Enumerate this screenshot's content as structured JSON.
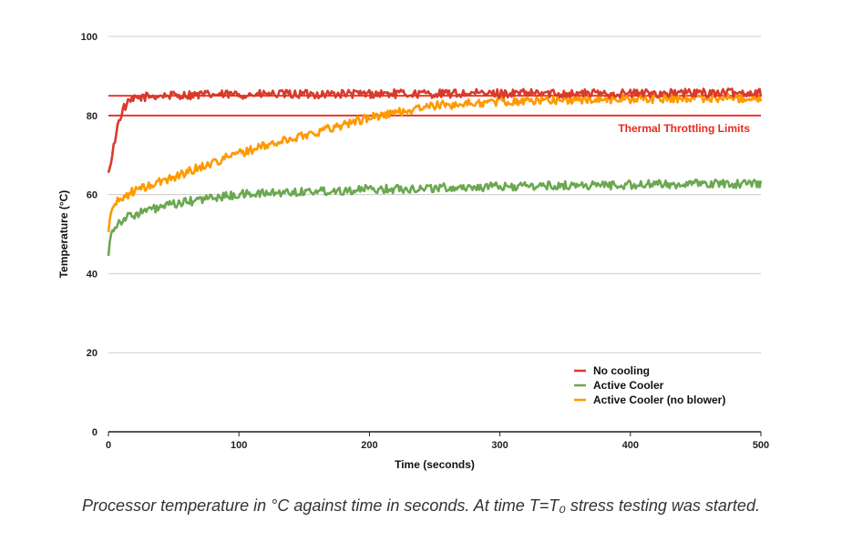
{
  "chart_data": {
    "type": "line",
    "title": "",
    "xlabel": "Time (seconds)",
    "ylabel": "Temperature (°C)",
    "xlim": [
      0,
      500
    ],
    "ylim": [
      0,
      100
    ],
    "x_ticks": [
      "0",
      "100",
      "200",
      "300",
      "400",
      "500"
    ],
    "y_ticks": [
      "0",
      "20",
      "40",
      "60",
      "80",
      "100"
    ],
    "grid": true,
    "legend_position": "bottom-right",
    "series": [
      {
        "name": "No cooling",
        "color": "#d93a2b",
        "x": [
          0,
          2,
          4,
          6,
          8,
          10,
          12,
          15,
          18,
          22,
          26,
          30,
          40,
          60,
          100,
          150,
          200,
          250,
          300,
          350,
          400,
          450,
          500
        ],
        "y": [
          65.5,
          68,
          72,
          76,
          78.5,
          80.5,
          82,
          83,
          83.8,
          84.3,
          84.6,
          84.8,
          85,
          85.2,
          85.3,
          85.4,
          85.5,
          85.5,
          85.6,
          85.6,
          85.6,
          85.7,
          85.8
        ]
      },
      {
        "name": "Active Cooler",
        "color": "#6aa84f",
        "x": [
          0,
          1,
          2,
          3,
          5,
          8,
          12,
          20,
          30,
          50,
          75,
          100,
          150,
          200,
          250,
          300,
          350,
          400,
          450,
          500
        ],
        "y": [
          44.5,
          48,
          50,
          51,
          52,
          53,
          54,
          55,
          56,
          57.5,
          59,
          60,
          60.8,
          61.3,
          61.7,
          62,
          62.3,
          62.5,
          62.7,
          62.8
        ]
      },
      {
        "name": "Active Cooler (no blower)",
        "color": "#ff9900",
        "x": [
          0,
          1,
          2,
          3,
          5,
          8,
          12,
          20,
          30,
          50,
          75,
          100,
          150,
          200,
          250,
          300,
          350,
          400,
          450,
          500
        ],
        "y": [
          50.5,
          53.5,
          55.5,
          56.5,
          57.5,
          58.5,
          59.5,
          61,
          62,
          64.5,
          67.5,
          70.5,
          75,
          79.5,
          82.5,
          83.5,
          84,
          84.2,
          84.4,
          84.5
        ]
      }
    ],
    "reference_lines": [
      {
        "y": 85,
        "color": "#e8291c"
      },
      {
        "y": 80,
        "color": "#e8291c"
      }
    ],
    "annotations": [
      {
        "text": "Thermal Throttling Limits",
        "color": "#e8291c"
      }
    ]
  },
  "caption": "Processor temperature in °C against time in seconds. At time T=T₀ stress testing was started."
}
